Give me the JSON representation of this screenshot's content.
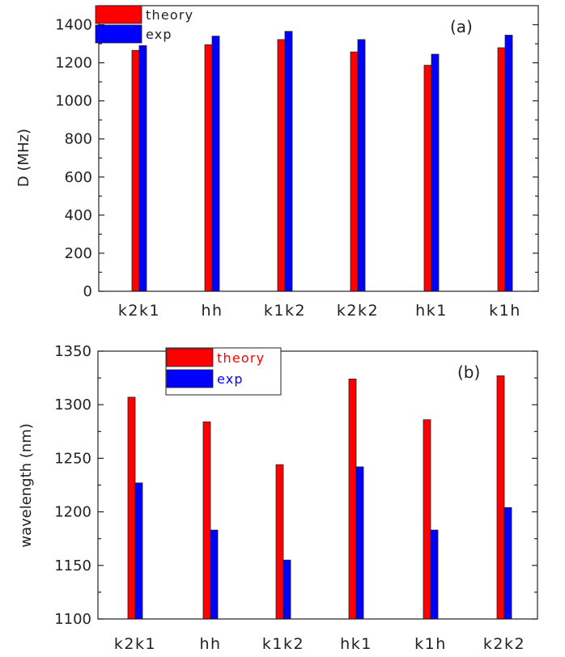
{
  "chart_data": [
    {
      "type": "bar",
      "panel_label": "(a)",
      "ylabel": "D  (MHz)",
      "xlabel": "",
      "ylim": [
        0,
        1500
      ],
      "yticks": [
        0,
        200,
        400,
        600,
        800,
        1000,
        1200,
        1400
      ],
      "categories": [
        "k2k1",
        "hh",
        "k1k2",
        "k2k2",
        "hk1",
        "k1h"
      ],
      "series": [
        {
          "name": "theory",
          "color": "#ff0000",
          "values": [
            1265,
            1295,
            1322,
            1257,
            1187,
            1279
          ]
        },
        {
          "name": "exp",
          "color": "#0000ff",
          "values": [
            1290,
            1340,
            1365,
            1322,
            1245,
            1345
          ]
        }
      ],
      "legend_position": "top-left",
      "legend_text_color": "#222222",
      "grid": false
    },
    {
      "type": "bar",
      "panel_label": "(b)",
      "ylabel": "wavelength (nm)",
      "xlabel": "",
      "ylim": [
        1100,
        1350
      ],
      "yticks": [
        1100,
        1150,
        1200,
        1250,
        1300,
        1350
      ],
      "categories": [
        "k2k1",
        "hh",
        "k1k2",
        "hk1",
        "k1h",
        "k2k2"
      ],
      "series": [
        {
          "name": "theory",
          "color": "#ff0000",
          "values": [
            1307,
            1284,
            1244,
            1324,
            1286,
            1327
          ]
        },
        {
          "name": "exp",
          "color": "#0000ff",
          "values": [
            1227,
            1183,
            1155,
            1242,
            1183,
            1204
          ]
        }
      ],
      "legend_position": "top-left",
      "legend_text_color": [
        "#ff0000",
        "#0000ff"
      ],
      "grid": false
    }
  ]
}
